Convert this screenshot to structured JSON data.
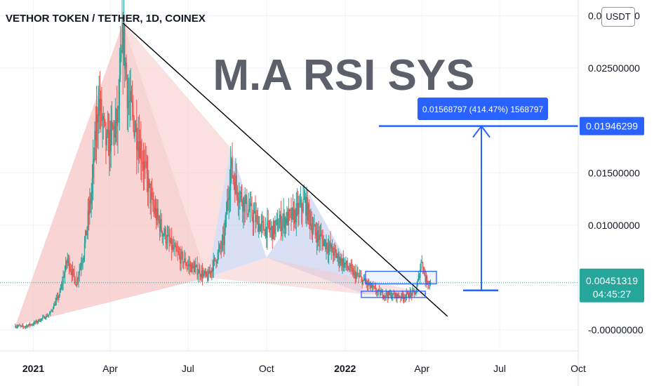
{
  "chart": {
    "title": "VETHOR TOKEN / TETHER, 1D, COINEX",
    "currency_button": "USDT",
    "watermark": "M.A RSI SYS",
    "measure_label": "0.01568797 (414.47%) 1568797",
    "current_price_label": "0.00451319",
    "countdown_label": "04:45:27",
    "target_price_label": "0.01946299",
    "colors": {
      "up": "#26a69a",
      "down": "#ef5350",
      "harmonic_fill": "#f7c6c6",
      "harmonic_blue_fill": "#b9c7ee",
      "measure_blue": "#2962ff",
      "price_tag_teal": "#26a69a",
      "trendline": "#000000"
    }
  },
  "chart_data": {
    "type": "candlestick",
    "symbol": "VETHOR TOKEN / TETHER",
    "interval": "1D",
    "exchange": "COINEX",
    "y_tick_labels": [
      "0.03000000",
      "0.02500000",
      "0.01500000",
      "0.01000000",
      "-0.00000000"
    ],
    "y_ticks": [
      0.03,
      0.025,
      0.015,
      0.01,
      0
    ],
    "x_tick_labels": [
      "2021",
      "Apr",
      "Jul",
      "Oct",
      "2022",
      "Apr",
      "Jul",
      "Oct"
    ],
    "x_ticks": [
      "2021-01-01",
      "2021-04-01",
      "2021-07-01",
      "2021-10-01",
      "2022-01-01",
      "2022-04-01",
      "2022-07-01",
      "2022-10-01"
    ],
    "ylim": [
      -0.002,
      0.0315
    ],
    "xlim": [
      "2020-11-23",
      "2022-10-01"
    ],
    "current_price": 0.00451319,
    "target_price": 0.01946299,
    "measured_move": {
      "change": 0.01568797,
      "percent": 414.47,
      "ticks": 1568797
    },
    "price_path": [
      [
        "2020-12-11",
        0.0004
      ],
      [
        "2020-12-20",
        0.0003
      ],
      [
        "2021-01-01",
        0.0006
      ],
      [
        "2021-01-20",
        0.0015
      ],
      [
        "2021-02-01",
        0.0035
      ],
      [
        "2021-02-10",
        0.0068
      ],
      [
        "2021-02-20",
        0.0045
      ],
      [
        "2021-03-01",
        0.0075
      ],
      [
        "2021-03-10",
        0.013
      ],
      [
        "2021-03-18",
        0.022
      ],
      [
        "2021-03-28",
        0.0175
      ],
      [
        "2021-04-10",
        0.02
      ],
      [
        "2021-04-16",
        0.0285
      ],
      [
        "2021-04-22",
        0.022
      ],
      [
        "2021-05-05",
        0.018
      ],
      [
        "2021-05-20",
        0.012
      ],
      [
        "2021-06-01",
        0.0095
      ],
      [
        "2021-06-15",
        0.0075
      ],
      [
        "2021-07-01",
        0.0062
      ],
      [
        "2021-07-10",
        0.0058
      ],
      [
        "2021-07-24",
        0.005
      ],
      [
        "2021-08-01",
        0.0065
      ],
      [
        "2021-08-12",
        0.0085
      ],
      [
        "2021-08-20",
        0.0155
      ],
      [
        "2021-08-30",
        0.013
      ],
      [
        "2021-09-10",
        0.0115
      ],
      [
        "2021-09-25",
        0.0098
      ],
      [
        "2021-10-08",
        0.0095
      ],
      [
        "2021-10-20",
        0.0105
      ],
      [
        "2021-11-01",
        0.0108
      ],
      [
        "2021-11-15",
        0.0122
      ],
      [
        "2021-11-25",
        0.0095
      ],
      [
        "2021-12-10",
        0.0082
      ],
      [
        "2021-12-25",
        0.0068
      ],
      [
        "2022-01-10",
        0.0055
      ],
      [
        "2022-01-25",
        0.0045
      ],
      [
        "2022-02-10",
        0.0035
      ],
      [
        "2022-02-25",
        0.0033
      ],
      [
        "2022-03-10",
        0.0032
      ],
      [
        "2022-03-25",
        0.0036
      ],
      [
        "2022-04-01",
        0.0068
      ],
      [
        "2022-04-05",
        0.0048
      ],
      [
        "2022-04-12",
        0.00451319
      ]
    ],
    "annotations": {
      "trendline": [
        [
          "2021-04-16",
          0.0293
        ],
        [
          "2022-05-01",
          0.0013
        ]
      ],
      "harmonic_pattern": [
        [
          "2020-12-11",
          0.0004
        ],
        [
          "2021-04-16",
          0.0293
        ],
        [
          "2021-07-24",
          0.005
        ],
        [
          "2021-08-20",
          0.0174
        ],
        [
          "2021-10-01",
          0.0069
        ],
        [
          "2021-11-20",
          0.013
        ],
        [
          "2022-01-25",
          0.0034
        ],
        [
          "2022-04-12",
          0.0034
        ]
      ],
      "boxes": [
        {
          "from": "2022-01-25",
          "to": "2022-04-18",
          "y_top": 0.0056,
          "y_bottom": 0.0044
        },
        {
          "from": "2022-01-20",
          "to": "2022-04-05",
          "y_top": 0.0037,
          "y_bottom": 0.0031
        }
      ]
    }
  }
}
